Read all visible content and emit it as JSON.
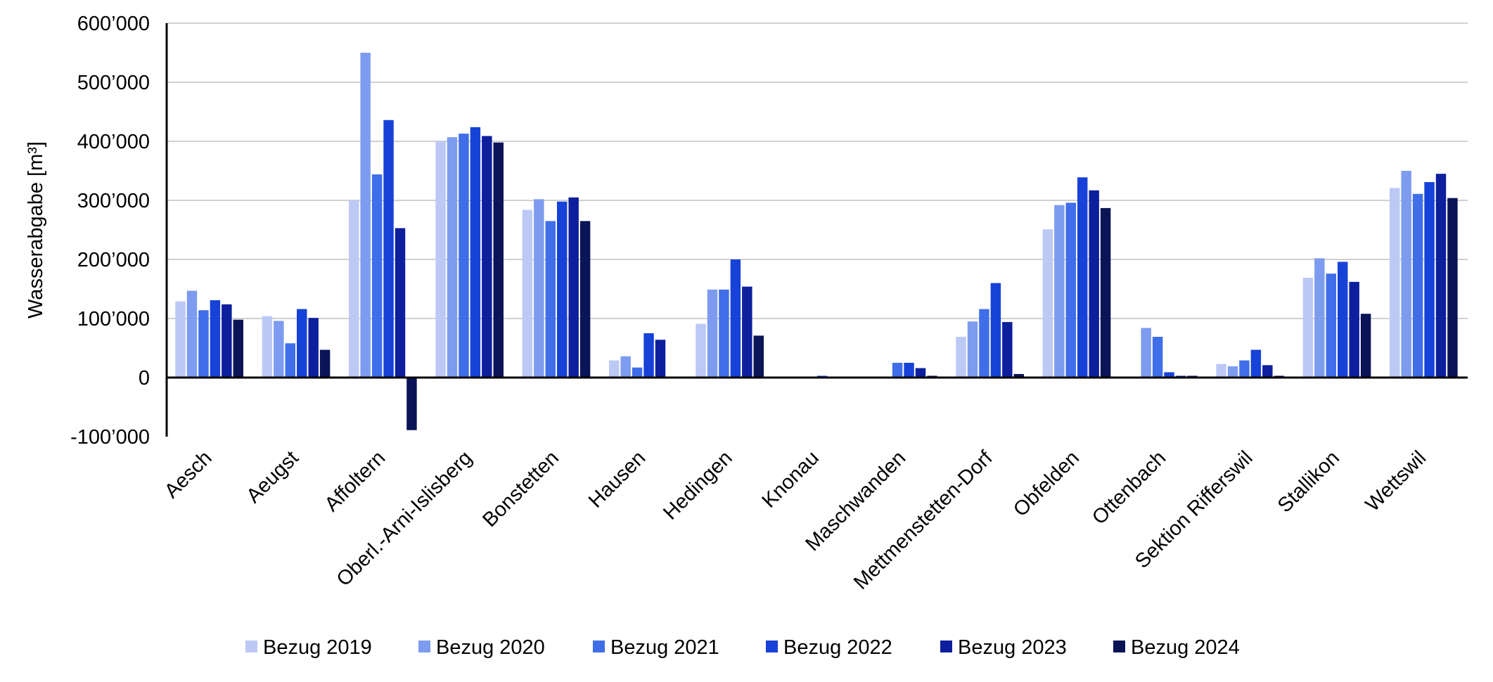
{
  "chart_data": {
    "type": "bar",
    "title": "",
    "xlabel": "",
    "ylabel": "Wasserabgabe [m³]",
    "ylim": [
      -100000,
      600000
    ],
    "yticks": [
      -100000,
      0,
      100000,
      200000,
      300000,
      400000,
      500000,
      600000
    ],
    "ytick_labels": [
      "-100’000",
      "0",
      "100’000",
      "200’000",
      "300’000",
      "400’000",
      "500’000",
      "600’000"
    ],
    "grid": true,
    "legend_position": "bottom",
    "categories": [
      "Aesch",
      "Aeugst",
      "Affoltern",
      "Oberl.-Arni-Islisberg",
      "Bonstetten",
      "Hausen",
      "Hedingen",
      "Knonau",
      "Maschwanden",
      "Mettmenstetten-Dorf",
      "Obfelden",
      "Ottenbach",
      "Sektion Rifferswil",
      "Stallikon",
      "Wettswil"
    ],
    "series": [
      {
        "name": "Bezug 2019",
        "color": "#bcc9f5",
        "values": [
          129000,
          104000,
          300000,
          400000,
          284000,
          29000,
          91000,
          0,
          0,
          69000,
          251000,
          0,
          23000,
          169000,
          321000
        ]
      },
      {
        "name": "Bezug 2020",
        "color": "#7d9cf0",
        "values": [
          147000,
          96000,
          550000,
          407000,
          302000,
          36000,
          149000,
          0,
          0,
          95000,
          292000,
          84000,
          19000,
          202000,
          350000
        ]
      },
      {
        "name": "Bezug 2021",
        "color": "#3f6ee8",
        "values": [
          114000,
          58000,
          344000,
          413000,
          265000,
          17000,
          149000,
          0,
          25000,
          116000,
          296000,
          69000,
          29000,
          176000,
          311000
        ]
      },
      {
        "name": "Bezug 2022",
        "color": "#1742d8",
        "values": [
          131000,
          116000,
          436000,
          424000,
          298000,
          75000,
          200000,
          3000,
          25000,
          160000,
          339000,
          9000,
          47000,
          196000,
          331000
        ]
      },
      {
        "name": "Bezug 2023",
        "color": "#0d1f9c",
        "values": [
          124000,
          101000,
          253000,
          409000,
          305000,
          64000,
          154000,
          0,
          16000,
          94000,
          317000,
          3000,
          21000,
          162000,
          345000
        ]
      },
      {
        "name": "Bezug 2024",
        "color": "#0a1457",
        "values": [
          98000,
          47000,
          -89000,
          398000,
          265000,
          0,
          71000,
          0,
          3000,
          6000,
          287000,
          3000,
          3000,
          108000,
          304000
        ]
      }
    ]
  }
}
